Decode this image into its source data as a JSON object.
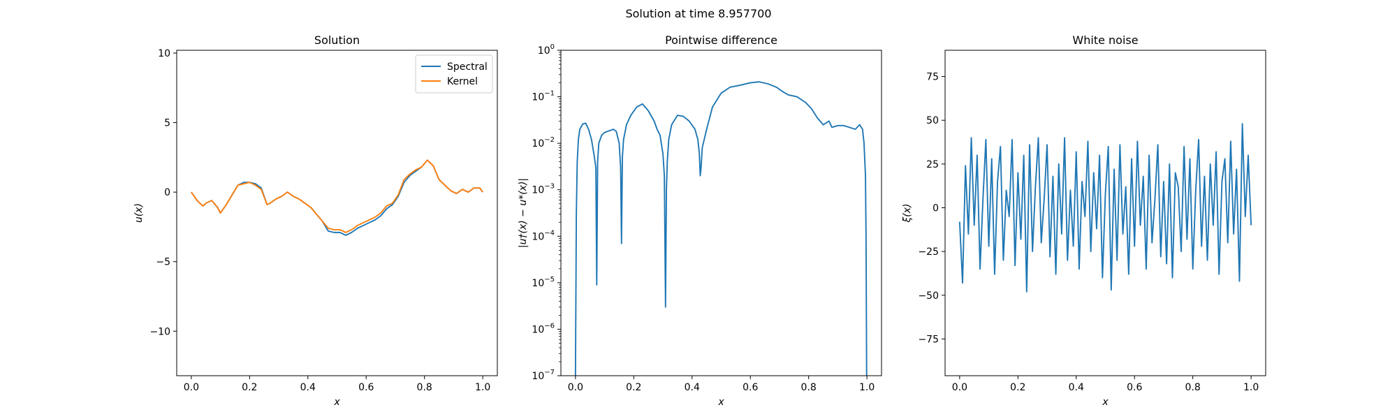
{
  "figure": {
    "suptitle": "Solution at time 8.957700",
    "x_label": "x"
  },
  "chart_data": [
    {
      "type": "line",
      "title": "Solution",
      "xlabel": "x",
      "ylabel": "u(x)",
      "xlim": [
        -0.05,
        1.05
      ],
      "ylim": [
        -13.2,
        10.2
      ],
      "yscale": "linear",
      "xticks": [
        0.0,
        0.2,
        0.4,
        0.6,
        0.8,
        1.0
      ],
      "xtick_labels": [
        "0.0",
        "0.2",
        "0.4",
        "0.6",
        "0.8",
        "1.0"
      ],
      "yticks": [
        -10,
        -5,
        0,
        5,
        10
      ],
      "ytick_labels": [
        "−10",
        "−5",
        "0",
        "5",
        "10"
      ],
      "grid": false,
      "legend": "top-right",
      "series": [
        {
          "name": "Spectral",
          "color": "#1f77b4",
          "x": [
            0.0,
            0.02,
            0.04,
            0.05,
            0.07,
            0.09,
            0.1,
            0.12,
            0.14,
            0.16,
            0.18,
            0.2,
            0.22,
            0.24,
            0.26,
            0.27,
            0.29,
            0.31,
            0.33,
            0.35,
            0.37,
            0.39,
            0.41,
            0.43,
            0.45,
            0.47,
            0.49,
            0.51,
            0.53,
            0.55,
            0.57,
            0.59,
            0.61,
            0.63,
            0.65,
            0.67,
            0.69,
            0.71,
            0.73,
            0.75,
            0.77,
            0.79,
            0.81,
            0.83,
            0.85,
            0.87,
            0.89,
            0.91,
            0.93,
            0.95,
            0.97,
            0.99,
            1.0
          ],
          "y": [
            0.0,
            -0.6,
            -1.0,
            -0.8,
            -0.6,
            -1.1,
            -1.5,
            -0.9,
            -0.2,
            0.5,
            0.7,
            0.7,
            0.6,
            0.3,
            -0.9,
            -0.8,
            -0.5,
            -0.3,
            0.0,
            -0.3,
            -0.5,
            -0.8,
            -1.1,
            -1.6,
            -2.1,
            -2.8,
            -2.9,
            -2.9,
            -3.1,
            -2.9,
            -2.6,
            -2.4,
            -2.2,
            -2.0,
            -1.7,
            -1.2,
            -0.9,
            -0.3,
            0.7,
            1.2,
            1.5,
            1.8,
            2.3,
            1.9,
            0.9,
            0.5,
            0.1,
            -0.1,
            0.2,
            0.0,
            0.3,
            0.3,
            0.0
          ]
        },
        {
          "name": "Kernel",
          "color": "#ff7f0e",
          "x": [
            0.0,
            0.02,
            0.04,
            0.05,
            0.07,
            0.09,
            0.1,
            0.12,
            0.14,
            0.16,
            0.18,
            0.2,
            0.22,
            0.24,
            0.26,
            0.27,
            0.29,
            0.31,
            0.33,
            0.35,
            0.37,
            0.39,
            0.41,
            0.43,
            0.45,
            0.47,
            0.49,
            0.51,
            0.53,
            0.55,
            0.57,
            0.59,
            0.61,
            0.63,
            0.65,
            0.67,
            0.69,
            0.71,
            0.73,
            0.75,
            0.77,
            0.79,
            0.81,
            0.83,
            0.85,
            0.87,
            0.89,
            0.91,
            0.93,
            0.95,
            0.97,
            0.99,
            1.0
          ],
          "y": [
            0.0,
            -0.6,
            -1.0,
            -0.8,
            -0.6,
            -1.1,
            -1.5,
            -0.9,
            -0.2,
            0.5,
            0.6,
            0.7,
            0.5,
            0.2,
            -0.9,
            -0.8,
            -0.5,
            -0.3,
            0.0,
            -0.3,
            -0.5,
            -0.8,
            -1.1,
            -1.6,
            -2.1,
            -2.6,
            -2.7,
            -2.7,
            -2.9,
            -2.7,
            -2.4,
            -2.2,
            -2.0,
            -1.8,
            -1.5,
            -1.0,
            -0.8,
            -0.2,
            0.9,
            1.3,
            1.6,
            1.8,
            2.3,
            1.9,
            0.9,
            0.5,
            0.1,
            -0.1,
            0.2,
            0.0,
            0.3,
            0.3,
            0.0
          ]
        }
      ]
    },
    {
      "type": "line",
      "title": "Pointwise difference",
      "xlabel": "x",
      "ylabel": "|u†(x) − u*(x)|",
      "xlim": [
        -0.05,
        1.05
      ],
      "ylim": [
        1e-07,
        1
      ],
      "yscale": "log",
      "xticks": [
        0.0,
        0.2,
        0.4,
        0.6,
        0.8,
        1.0
      ],
      "xtick_labels": [
        "0.0",
        "0.2",
        "0.4",
        "0.6",
        "0.8",
        "1.0"
      ],
      "yticks": [
        1e-07,
        1e-06,
        1e-05,
        0.0001,
        0.001,
        0.01,
        0.1,
        1
      ],
      "ytick_labels": [
        [
          "10",
          "−7"
        ],
        [
          "10",
          "−6"
        ],
        [
          "10",
          "−5"
        ],
        [
          "10",
          "−4"
        ],
        [
          "10",
          "−3"
        ],
        [
          "10",
          "−2"
        ],
        [
          "10",
          "−1"
        ],
        [
          "10",
          "0"
        ]
      ],
      "grid": false,
      "series": [
        {
          "color": "#1f77b4",
          "x": [
            0.0,
            0.003,
            0.006,
            0.01,
            0.015,
            0.025,
            0.035,
            0.045,
            0.055,
            0.065,
            0.07,
            0.073,
            0.076,
            0.08,
            0.09,
            0.1,
            0.11,
            0.12,
            0.13,
            0.14,
            0.15,
            0.155,
            0.158,
            0.161,
            0.165,
            0.175,
            0.19,
            0.21,
            0.23,
            0.25,
            0.27,
            0.28,
            0.29,
            0.3,
            0.305,
            0.309,
            0.312,
            0.315,
            0.32,
            0.33,
            0.35,
            0.37,
            0.39,
            0.41,
            0.42,
            0.425,
            0.428,
            0.431,
            0.435,
            0.45,
            0.47,
            0.5,
            0.53,
            0.57,
            0.6,
            0.63,
            0.66,
            0.69,
            0.71,
            0.73,
            0.76,
            0.79,
            0.81,
            0.83,
            0.85,
            0.87,
            0.88,
            0.9,
            0.92,
            0.94,
            0.96,
            0.975,
            0.985,
            0.99,
            0.995,
            0.997,
            0.999
          ],
          "y": [
            1e-07,
            0.0003,
            0.004,
            0.012,
            0.02,
            0.026,
            0.027,
            0.02,
            0.012,
            0.005,
            0.003,
            9e-06,
            0.004,
            0.01,
            0.015,
            0.017,
            0.018,
            0.019,
            0.02,
            0.018,
            0.01,
            0.003,
            7e-05,
            0.005,
            0.012,
            0.025,
            0.04,
            0.06,
            0.07,
            0.05,
            0.03,
            0.02,
            0.015,
            0.006,
            0.002,
            3e-06,
            0.001,
            0.004,
            0.012,
            0.025,
            0.04,
            0.038,
            0.03,
            0.02,
            0.012,
            0.006,
            0.002,
            0.003,
            0.008,
            0.02,
            0.06,
            0.12,
            0.16,
            0.18,
            0.2,
            0.21,
            0.19,
            0.16,
            0.13,
            0.11,
            0.1,
            0.075,
            0.055,
            0.035,
            0.025,
            0.03,
            0.022,
            0.024,
            0.024,
            0.022,
            0.02,
            0.025,
            0.02,
            0.01,
            0.002,
            9e-05,
            1e-07
          ]
        }
      ]
    },
    {
      "type": "line",
      "title": "White noise",
      "xlabel": "x",
      "ylabel": "ξ(x)",
      "xlim": [
        -0.05,
        1.05
      ],
      "ylim": [
        -96,
        90
      ],
      "yscale": "linear",
      "xticks": [
        0.0,
        0.2,
        0.4,
        0.6,
        0.8,
        1.0
      ],
      "xtick_labels": [
        "0.0",
        "0.2",
        "0.4",
        "0.6",
        "0.8",
        "1.0"
      ],
      "yticks": [
        -75,
        -50,
        -25,
        0,
        25,
        50,
        75
      ],
      "ytick_labels": [
        "−75",
        "−50",
        "−25",
        "0",
        "25",
        "50",
        "75"
      ],
      "grid": false,
      "series": [
        {
          "color": "#1f77b4",
          "x": [
            0.0,
            0.01,
            0.02,
            0.03,
            0.04,
            0.05,
            0.06,
            0.07,
            0.08,
            0.09,
            0.1,
            0.11,
            0.12,
            0.13,
            0.14,
            0.15,
            0.16,
            0.17,
            0.18,
            0.19,
            0.2,
            0.21,
            0.22,
            0.23,
            0.24,
            0.25,
            0.26,
            0.27,
            0.28,
            0.29,
            0.3,
            0.31,
            0.32,
            0.33,
            0.34,
            0.35,
            0.36,
            0.37,
            0.38,
            0.39,
            0.4,
            0.41,
            0.42,
            0.43,
            0.44,
            0.45,
            0.46,
            0.47,
            0.48,
            0.49,
            0.5,
            0.51,
            0.52,
            0.53,
            0.54,
            0.55,
            0.56,
            0.57,
            0.58,
            0.59,
            0.6,
            0.61,
            0.62,
            0.63,
            0.64,
            0.65,
            0.66,
            0.67,
            0.68,
            0.69,
            0.7,
            0.71,
            0.72,
            0.73,
            0.74,
            0.75,
            0.76,
            0.77,
            0.78,
            0.79,
            0.8,
            0.81,
            0.82,
            0.83,
            0.84,
            0.85,
            0.86,
            0.87,
            0.88,
            0.89,
            0.9,
            0.91,
            0.92,
            0.93,
            0.94,
            0.95,
            0.96,
            0.97,
            0.98,
            0.99,
            1.0
          ],
          "y": [
            -8,
            -43,
            24,
            -15,
            40,
            -10,
            30,
            -35,
            5,
            39,
            -22,
            28,
            -38,
            15,
            35,
            -30,
            10,
            -5,
            39,
            -33,
            20,
            -18,
            30,
            -48,
            36,
            -25,
            12,
            40,
            -20,
            5,
            36,
            -28,
            18,
            -38,
            25,
            -15,
            40,
            -30,
            10,
            -22,
            32,
            -35,
            15,
            -5,
            38,
            -25,
            20,
            -12,
            30,
            -40,
            8,
            35,
            -47,
            22,
            -30,
            36,
            -15,
            12,
            -38,
            28,
            -22,
            38,
            -10,
            18,
            -35,
            30,
            -20,
            5,
            36,
            -28,
            15,
            -32,
            25,
            -40,
            20,
            12,
            -25,
            35,
            -18,
            28,
            -35,
            10,
            39,
            -22,
            18,
            -30,
            25,
            -10,
            32,
            -38,
            15,
            28,
            -20,
            38,
            -15,
            22,
            -42,
            48,
            -5,
            30,
            -10
          ]
        }
      ]
    }
  ]
}
